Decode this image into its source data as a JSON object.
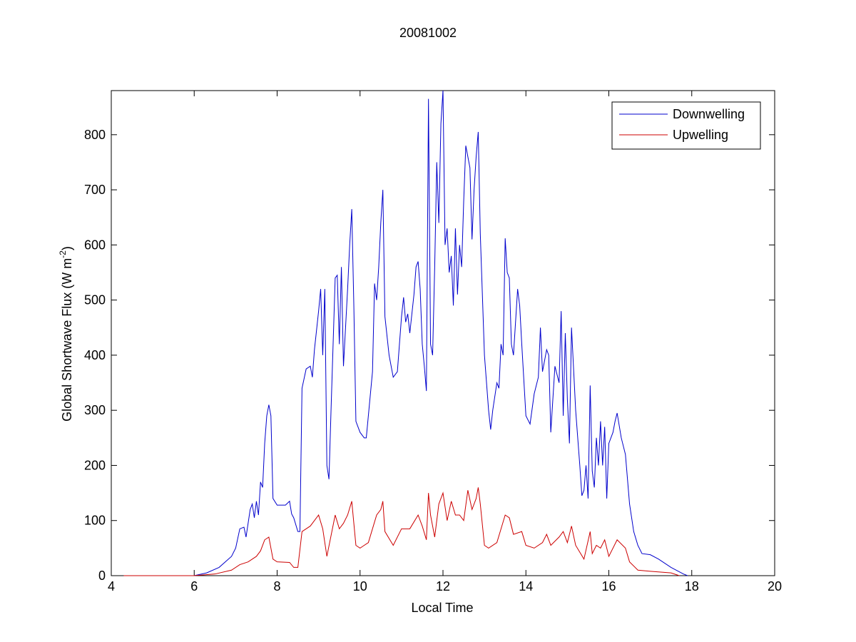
{
  "chart_data": {
    "type": "line",
    "title": "20081002",
    "x_label": "Local Time",
    "y_label": [
      "Global Shortwave Flux (W m",
      "-2",
      ")"
    ],
    "xlim": [
      4,
      20
    ],
    "xticks": [
      4,
      6,
      8,
      10,
      12,
      14,
      16,
      18,
      20
    ],
    "ylim": [
      0,
      880
    ],
    "yticks": [
      0,
      100,
      200,
      300,
      400,
      500,
      600,
      700,
      800
    ],
    "legend": "northeast",
    "series": [
      {
        "name": "Downwelling",
        "color": "#0000cc",
        "x": [
          4.3,
          5.0,
          5.5,
          6.0,
          6.3,
          6.6,
          6.9,
          7.0,
          7.1,
          7.2,
          7.25,
          7.35,
          7.4,
          7.45,
          7.5,
          7.55,
          7.6,
          7.65,
          7.7,
          7.75,
          7.8,
          7.85,
          7.9,
          8.0,
          8.2,
          8.3,
          8.35,
          8.4,
          8.5,
          8.55,
          8.6,
          8.7,
          8.8,
          8.85,
          8.9,
          9.0,
          9.05,
          9.1,
          9.15,
          9.2,
          9.25,
          9.3,
          9.4,
          9.45,
          9.5,
          9.55,
          9.6,
          9.65,
          9.7,
          9.75,
          9.8,
          9.85,
          9.9,
          10.0,
          10.1,
          10.15,
          10.2,
          10.3,
          10.35,
          10.4,
          10.45,
          10.5,
          10.55,
          10.6,
          10.7,
          10.8,
          10.9,
          11.0,
          11.05,
          11.1,
          11.15,
          11.2,
          11.3,
          11.35,
          11.4,
          11.45,
          11.5,
          11.55,
          11.6,
          11.65,
          11.7,
          11.75,
          11.8,
          11.85,
          11.9,
          11.95,
          12.0,
          12.05,
          12.1,
          12.15,
          12.2,
          12.25,
          12.3,
          12.35,
          12.4,
          12.45,
          12.5,
          12.55,
          12.6,
          12.65,
          12.7,
          12.75,
          12.8,
          12.85,
          12.9,
          13.0,
          13.1,
          13.15,
          13.2,
          13.3,
          13.35,
          13.4,
          13.45,
          13.5,
          13.55,
          13.6,
          13.65,
          13.7,
          13.8,
          13.85,
          13.9,
          14.0,
          14.1,
          14.2,
          14.3,
          14.35,
          14.4,
          14.5,
          14.55,
          14.6,
          14.7,
          14.8,
          14.85,
          14.9,
          14.95,
          15.0,
          15.05,
          15.1,
          15.2,
          15.3,
          15.35,
          15.4,
          15.45,
          15.5,
          15.55,
          15.6,
          15.65,
          15.7,
          15.75,
          15.8,
          15.85,
          15.9,
          15.95,
          16.0,
          16.1,
          16.15,
          16.2,
          16.3,
          16.4,
          16.5,
          16.6,
          16.7,
          16.8,
          17.0,
          17.2,
          17.5,
          17.8,
          17.9
        ],
        "values": [
          0,
          0,
          0,
          0,
          5,
          15,
          35,
          50,
          85,
          88,
          70,
          120,
          130,
          105,
          135,
          110,
          170,
          160,
          240,
          290,
          310,
          290,
          140,
          128,
          128,
          135,
          112,
          105,
          80,
          80,
          340,
          375,
          380,
          360,
          410,
          480,
          520,
          400,
          520,
          200,
          175,
          300,
          540,
          545,
          420,
          560,
          380,
          450,
          520,
          600,
          665,
          490,
          280,
          260,
          250,
          250,
          290,
          370,
          530,
          500,
          560,
          640,
          700,
          470,
          400,
          360,
          370,
          470,
          505,
          460,
          475,
          440,
          510,
          560,
          570,
          520,
          420,
          380,
          335,
          865,
          420,
          400,
          560,
          750,
          640,
          820,
          880,
          600,
          630,
          550,
          580,
          490,
          630,
          510,
          600,
          560,
          680,
          780,
          760,
          740,
          610,
          700,
          760,
          805,
          620,
          400,
          300,
          265,
          300,
          350,
          340,
          420,
          400,
          612,
          550,
          540,
          420,
          400,
          520,
          490,
          420,
          290,
          275,
          330,
          360,
          450,
          370,
          410,
          400,
          260,
          380,
          350,
          480,
          290,
          440,
          320,
          240,
          450,
          300,
          200,
          145,
          155,
          200,
          140,
          345,
          190,
          160,
          250,
          200,
          280,
          200,
          270,
          140,
          240,
          260,
          280,
          295,
          250,
          220,
          130,
          80,
          55,
          40,
          38,
          30,
          15,
          3,
          0
        ]
      },
      {
        "name": "Upwelling",
        "color": "#cc0000",
        "x": [
          4.3,
          6.0,
          6.5,
          6.9,
          7.1,
          7.3,
          7.5,
          7.6,
          7.7,
          7.8,
          7.9,
          8.0,
          8.3,
          8.4,
          8.5,
          8.6,
          8.8,
          9.0,
          9.1,
          9.2,
          9.4,
          9.5,
          9.6,
          9.7,
          9.8,
          9.9,
          10.0,
          10.2,
          10.3,
          10.4,
          10.5,
          10.55,
          10.6,
          10.8,
          11.0,
          11.2,
          11.4,
          11.5,
          11.6,
          11.65,
          11.7,
          11.8,
          11.9,
          12.0,
          12.1,
          12.2,
          12.3,
          12.4,
          12.5,
          12.6,
          12.7,
          12.8,
          12.85,
          12.9,
          13.0,
          13.1,
          13.3,
          13.5,
          13.6,
          13.7,
          13.9,
          14.0,
          14.2,
          14.4,
          14.5,
          14.6,
          14.8,
          14.9,
          15.0,
          15.1,
          15.2,
          15.4,
          15.55,
          15.6,
          15.7,
          15.8,
          15.9,
          16.0,
          16.2,
          16.4,
          16.5,
          16.7,
          17.0,
          17.5,
          17.7
        ],
        "values": [
          0,
          0,
          3,
          10,
          20,
          25,
          35,
          45,
          65,
          70,
          30,
          25,
          24,
          15,
          15,
          80,
          90,
          110,
          85,
          35,
          110,
          85,
          95,
          110,
          135,
          55,
          50,
          60,
          85,
          110,
          120,
          135,
          80,
          55,
          85,
          85,
          110,
          90,
          65,
          150,
          110,
          70,
          130,
          150,
          100,
          135,
          110,
          110,
          100,
          155,
          120,
          140,
          160,
          130,
          55,
          50,
          60,
          110,
          105,
          75,
          80,
          55,
          50,
          60,
          75,
          55,
          70,
          80,
          60,
          90,
          55,
          30,
          80,
          40,
          55,
          50,
          65,
          35,
          65,
          50,
          25,
          10,
          8,
          5,
          0
        ]
      }
    ]
  }
}
